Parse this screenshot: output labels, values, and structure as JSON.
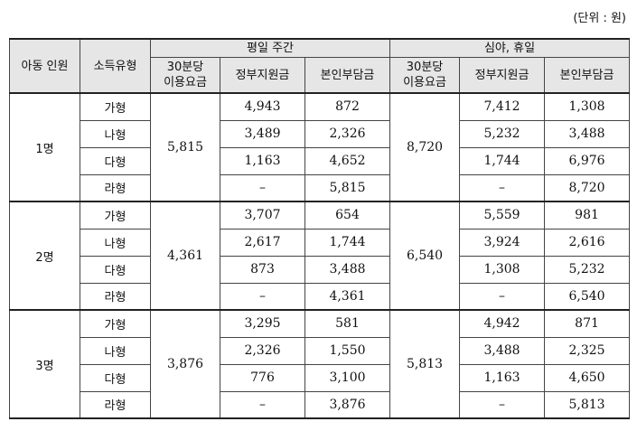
{
  "unit_label": "(단위 : 원)",
  "headers": {
    "children": "아동 인원",
    "income_type": "소득유형",
    "weekday": "평일 주간",
    "night": "심야, 휴일",
    "rate_line1": "30분당",
    "rate_line2": "이용요금",
    "gov_support": "정부지원금",
    "self_pay": "본인부담금"
  },
  "groups": [
    {
      "children": "1명",
      "weekday_rate": "5,815",
      "night_rate": "8,720",
      "rows": [
        {
          "type": "가형",
          "wd_gov": "4,943",
          "wd_self": "872",
          "nt_gov": "7,412",
          "nt_self": "1,308"
        },
        {
          "type": "나형",
          "wd_gov": "3,489",
          "wd_self": "2,326",
          "nt_gov": "5,232",
          "nt_self": "3,488"
        },
        {
          "type": "다형",
          "wd_gov": "1,163",
          "wd_self": "4,652",
          "nt_gov": "1,744",
          "nt_self": "6,976"
        },
        {
          "type": "라형",
          "wd_gov": "–",
          "wd_self": "5,815",
          "nt_gov": "–",
          "nt_self": "8,720"
        }
      ]
    },
    {
      "children": "2명",
      "weekday_rate": "4,361",
      "night_rate": "6,540",
      "rows": [
        {
          "type": "가형",
          "wd_gov": "3,707",
          "wd_self": "654",
          "nt_gov": "5,559",
          "nt_self": "981"
        },
        {
          "type": "나형",
          "wd_gov": "2,617",
          "wd_self": "1,744",
          "nt_gov": "3,924",
          "nt_self": "2,616"
        },
        {
          "type": "다형",
          "wd_gov": "873",
          "wd_self": "3,488",
          "nt_gov": "1,308",
          "nt_self": "5,232"
        },
        {
          "type": "라형",
          "wd_gov": "–",
          "wd_self": "4,361",
          "nt_gov": "–",
          "nt_self": "6,540"
        }
      ]
    },
    {
      "children": "3명",
      "weekday_rate": "3,876",
      "night_rate": "5,813",
      "rows": [
        {
          "type": "가형",
          "wd_gov": "3,295",
          "wd_self": "581",
          "nt_gov": "4,942",
          "nt_self": "871"
        },
        {
          "type": "나형",
          "wd_gov": "2,326",
          "wd_self": "1,550",
          "nt_gov": "3,488",
          "nt_self": "2,325"
        },
        {
          "type": "다형",
          "wd_gov": "776",
          "wd_self": "3,100",
          "nt_gov": "1,163",
          "nt_self": "4,650"
        },
        {
          "type": "라형",
          "wd_gov": "–",
          "wd_self": "3,876",
          "nt_gov": "–",
          "nt_self": "5,813"
        }
      ]
    }
  ]
}
